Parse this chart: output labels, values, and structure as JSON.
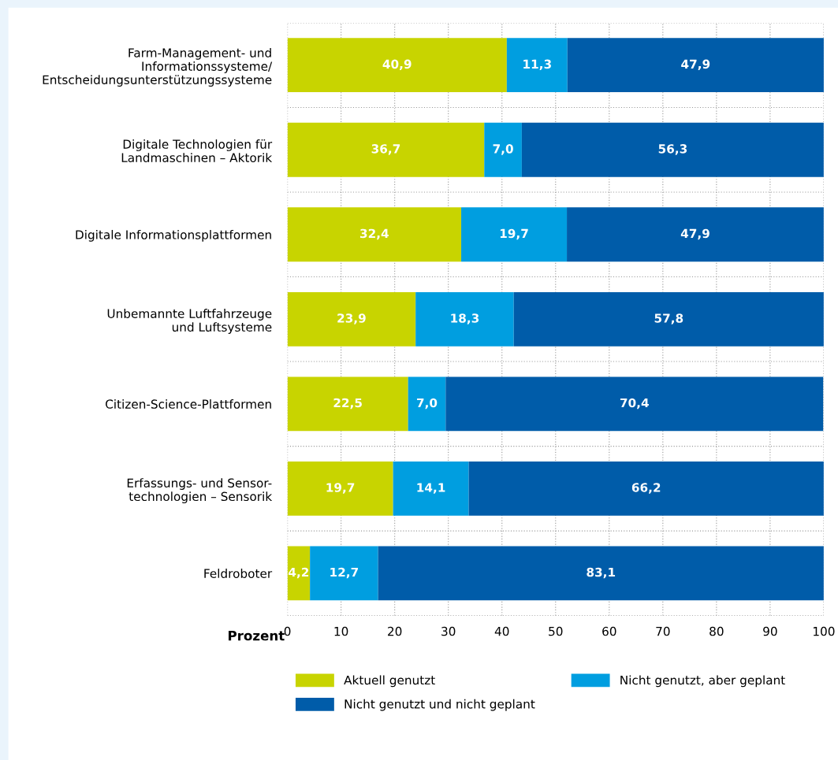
{
  "chart_data": {
    "type": "bar",
    "orientation": "horizontal",
    "stacked": true,
    "xlabel": "Prozent",
    "categories": [
      "Farm-Management- und\nInformationssysteme/\nEntscheidungsunterstützungssysteme",
      "Digitale Technologien für\nLandmaschinen – Aktorik",
      "Digitale Informationsplattformen",
      "Unbemannte Luftfahrzeuge\nund Luftsysteme",
      "Citizen-Science-Plattformen",
      "Erfassungs- und Sensor-\ntechnologien – Sensorik",
      "Feldroboter"
    ],
    "series": [
      {
        "name": "Aktuell genutzt",
        "color": "#c8d400",
        "values": [
          40.9,
          36.7,
          32.4,
          23.9,
          22.5,
          19.7,
          4.2
        ],
        "value_labels": [
          "40,9",
          "36,7",
          "32,4",
          "23,9",
          "22,5",
          "19,7",
          "4,2"
        ]
      },
      {
        "name": "Nicht genutzt, aber geplant",
        "color": "#009ee0",
        "values": [
          11.3,
          7.0,
          19.7,
          18.3,
          7.0,
          14.1,
          12.7
        ],
        "value_labels": [
          "11,3",
          "7,0",
          "19,7",
          "18,3",
          "7,0",
          "14,1",
          "12,7"
        ]
      },
      {
        "name": "Nicht genutzt und nicht geplant",
        "color": "#005ca9",
        "values": [
          47.9,
          56.3,
          47.9,
          57.8,
          70.4,
          66.2,
          83.1
        ],
        "value_labels": [
          "47,9",
          "56,3",
          "47,9",
          "57,8",
          "70,4",
          "66,2",
          "83,1"
        ]
      }
    ],
    "xlim": [
      0,
      100
    ],
    "xticks": [
      0,
      10,
      20,
      30,
      40,
      50,
      60,
      70,
      80,
      90,
      100
    ],
    "grid": true,
    "legend": "bottom"
  }
}
